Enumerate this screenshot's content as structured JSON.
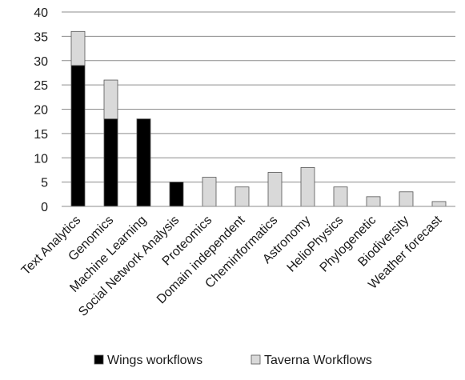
{
  "chart_data": {
    "type": "bar",
    "stacked": true,
    "categories": [
      "Text Analytics",
      "Genomics",
      "Machine Learning",
      "Social Network Analysis",
      "Proteomics",
      "Domain independent",
      "Cheminformatics",
      "Astronomy",
      "HelioPhysics",
      "Phylogenetic",
      "Biodiversity",
      "Weather forecast"
    ],
    "series": [
      {
        "name": "Wings workflows",
        "color": "#000000",
        "values": [
          29,
          18,
          18,
          5,
          0,
          0,
          0,
          0,
          0,
          0,
          0,
          0
        ]
      },
      {
        "name": "Taverna Workflows",
        "color": "#d9d9d9",
        "values": [
          7,
          8,
          0,
          0,
          6,
          4,
          7,
          8,
          4,
          2,
          3,
          1
        ]
      }
    ],
    "ylim": [
      0,
      40
    ],
    "yticks": [
      0,
      5,
      10,
      15,
      20,
      25,
      30,
      35,
      40
    ],
    "grid": true,
    "legend_position": "bottom"
  }
}
